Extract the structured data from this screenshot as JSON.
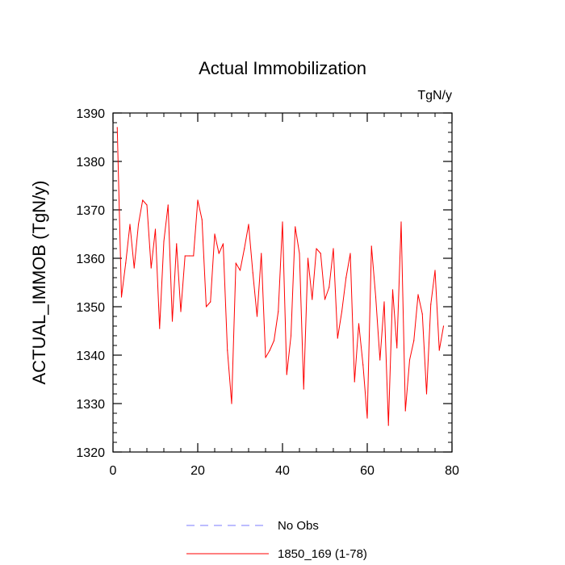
{
  "chart_data": {
    "type": "line",
    "title": "Actual Immobilization",
    "units": "TgN/y",
    "xlabel": "",
    "ylabel": "ACTUAL_IMMOB  (TgN/y)",
    "xlim": [
      0,
      80
    ],
    "ylim": [
      1320,
      1390
    ],
    "xticks": [
      0,
      20,
      40,
      60,
      80
    ],
    "yticks": [
      1320,
      1330,
      1340,
      1350,
      1360,
      1370,
      1380,
      1390
    ],
    "x_minor_step": 4,
    "y_minor_step": 2,
    "series": [
      {
        "name": "1850_169 (1-78)",
        "color": "#ff0000",
        "style": "solid",
        "x": [
          1,
          2,
          3,
          4,
          5,
          6,
          7,
          8,
          9,
          10,
          11,
          12,
          13,
          14,
          15,
          16,
          17,
          18,
          19,
          20,
          21,
          22,
          23,
          24,
          25,
          26,
          27,
          28,
          29,
          30,
          31,
          32,
          33,
          34,
          35,
          36,
          37,
          38,
          39,
          40,
          41,
          42,
          43,
          44,
          45,
          46,
          47,
          48,
          49,
          50,
          51,
          52,
          53,
          54,
          55,
          56,
          57,
          58,
          59,
          60,
          61,
          62,
          63,
          64,
          65,
          66,
          67,
          68,
          69,
          70,
          71,
          72,
          73,
          74,
          75,
          76,
          77,
          78
        ],
        "values": [
          1387,
          1352,
          1359,
          1367,
          1358,
          1367,
          1372,
          1371,
          1358,
          1366,
          1345.5,
          1363.5,
          1371,
          1347,
          1363,
          1349,
          1360.5,
          1360.5,
          1360.5,
          1372,
          1368,
          1350,
          1351,
          1365,
          1361,
          1363,
          1341,
          1330,
          1359,
          1357.5,
          1362,
          1367,
          1357,
          1348,
          1361,
          1339.5,
          1341,
          1343,
          1349,
          1367.5,
          1336,
          1344,
          1366.5,
          1361,
          1333,
          1360,
          1351.5,
          1362,
          1361,
          1351.5,
          1354,
          1362,
          1343.5,
          1349,
          1356,
          1361,
          1334.5,
          1346.5,
          1338,
          1327,
          1362.5,
          1352,
          1339,
          1351,
          1325.5,
          1353.5,
          1341.5,
          1367.5,
          1328.5,
          1339,
          1343,
          1352.5,
          1348.5,
          1332,
          1350.5,
          1357.5,
          1341,
          1346
        ]
      }
    ],
    "legend": [
      {
        "label": "No Obs",
        "color": "#7b7bff",
        "style": "dashed"
      },
      {
        "label": "1850_169 (1-78)",
        "color": "#ff0000",
        "style": "solid"
      }
    ],
    "legend_position": "bottom-center"
  }
}
